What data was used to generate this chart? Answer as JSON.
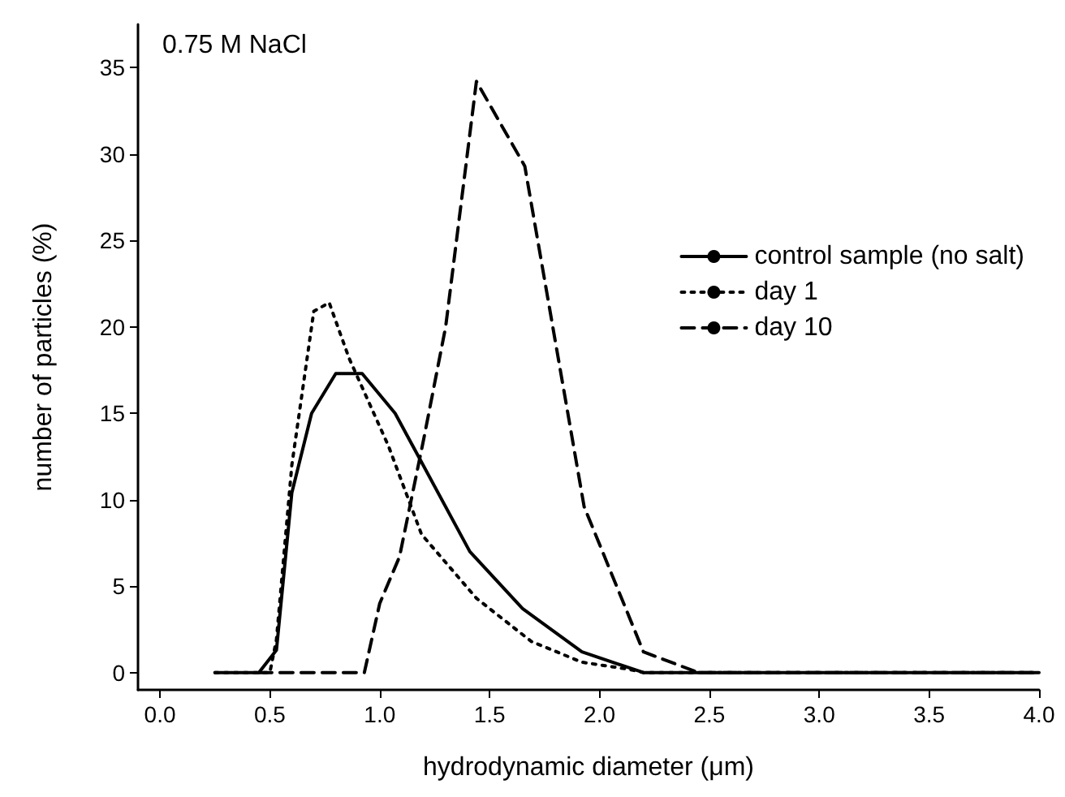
{
  "chart_data": {
    "type": "line",
    "xlabel": "hydrodynamic diameter (μm)",
    "ylabel": "number of particles (%)",
    "annotations": [
      "0.75 M NaCl"
    ],
    "xlim": [
      -0.1,
      4.0
    ],
    "xticks": [
      {
        "value": 0,
        "label": "0.0"
      },
      {
        "value": 0.5,
        "label": "0.5"
      },
      {
        "value": 1,
        "label": "1.0"
      },
      {
        "value": 1.5,
        "label": "1.5"
      },
      {
        "value": 2,
        "label": "2.0"
      },
      {
        "value": 2.5,
        "label": "2.5"
      },
      {
        "value": 3,
        "label": "3.0"
      },
      {
        "value": 3.5,
        "label": "3.5"
      },
      {
        "value": 4,
        "label": "4.0"
      }
    ],
    "ylim": [
      -1,
      37.5
    ],
    "yticks": [
      0,
      5,
      10,
      15,
      20,
      25,
      30,
      35
    ],
    "grid": false,
    "legend": "top right",
    "marker": "none",
    "series": [
      {
        "name": "control sample (no salt)",
        "color": "#000000",
        "line_style": "solid",
        "x": [
          0.25,
          0.45,
          0.53,
          0.6,
          0.69,
          0.8,
          0.92,
          1.07,
          1.41,
          1.65,
          1.92,
          2.2,
          4.0
        ],
        "values": [
          0,
          0,
          1.3,
          10.4,
          15,
          17.3,
          17.3,
          15,
          7,
          3.7,
          1.2,
          0,
          0
        ]
      },
      {
        "name": "day 1",
        "color": "#000000",
        "line_style": "dotted",
        "x": [
          0.25,
          0.5,
          0.53,
          0.6,
          0.7,
          0.77,
          0.86,
          1.04,
          1.19,
          1.44,
          1.69,
          1.92,
          2.13,
          2.2,
          4.0
        ],
        "values": [
          0,
          0,
          1.9,
          12,
          20.9,
          21.4,
          18.2,
          13.1,
          8,
          4.3,
          1.8,
          0.6,
          0.2,
          0,
          0
        ]
      },
      {
        "name": "day 10",
        "color": "#000000",
        "line_style": "dashed",
        "x": [
          0.45,
          0.93,
          1.0,
          1.09,
          1.2,
          1.3,
          1.44,
          1.66,
          1.93,
          2.2,
          2.45,
          4.0
        ],
        "values": [
          0,
          0,
          4,
          6.7,
          13.5,
          20,
          34.2,
          29.3,
          9.6,
          1.2,
          0,
          0
        ]
      }
    ]
  }
}
